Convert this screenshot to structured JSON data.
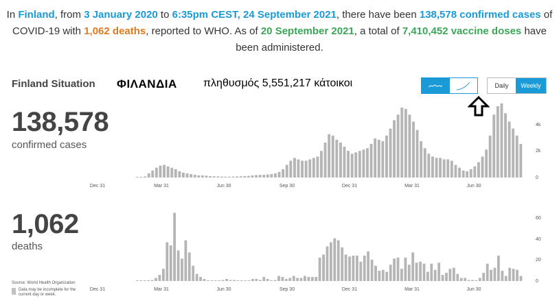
{
  "summary": {
    "p1": "In ",
    "country": "Finland",
    "p2": ", from ",
    "date_from": "3 January 2020",
    "p3": " to ",
    "date_to": "6:35pm CEST, 24 September 2021",
    "p4": ", there have been ",
    "confirmed_text": "138,578 confirmed cases",
    "p5": " of COVID-19 with ",
    "deaths_text": "1,062 deaths",
    "p6": ", reported to WHO. As of ",
    "vaccine_date": "20 September 2021",
    "p7": ", a total of ",
    "vaccine_text": "7,410,452 vaccine doses",
    "p8": " have been administered."
  },
  "header": {
    "title": "Finland Situation",
    "greek_title": "ΦΙΛΑΝΔΙΑ",
    "population": "πληθυσμός 5,551,217 κάτοικοι"
  },
  "controls": {
    "daily_label": "Daily",
    "weekly_label": "Weekly",
    "chart_icons": [
      "bar-chart-icon",
      "cumulative-line-icon"
    ]
  },
  "cases_panel": {
    "value": "138,578",
    "label": "confirmed cases"
  },
  "deaths_panel": {
    "value": "1,062",
    "label": "deaths"
  },
  "footer": {
    "source": "Source: World Health Organization",
    "note": "Data may be incomplete for the current day or week."
  },
  "colors": {
    "accent": "#1a9bd7",
    "orange": "#e07a1f",
    "green": "#3aa757",
    "bar": "#b5b5b5"
  },
  "chart_data": [
    {
      "type": "bar",
      "name": "confirmed cases",
      "xticks": [
        "Dec 31",
        "Mar 31",
        "Jun 30",
        "Sep 30",
        "Dec 31",
        "Mar 31",
        "Jun 30"
      ],
      "yticks": [
        "0",
        "2k",
        "4k"
      ],
      "ylim": [
        0,
        5000
      ],
      "values": [
        10,
        30,
        80,
        300,
        500,
        700,
        850,
        900,
        800,
        700,
        600,
        450,
        350,
        300,
        250,
        200,
        150,
        150,
        130,
        100,
        90,
        80,
        70,
        60,
        60,
        70,
        80,
        90,
        100,
        120,
        150,
        170,
        190,
        200,
        220,
        250,
        300,
        400,
        600,
        900,
        1200,
        1400,
        1300,
        1200,
        1200,
        1300,
        1400,
        1500,
        1900,
        2500,
        3100,
        3000,
        2700,
        2500,
        2200,
        1900,
        1700,
        1800,
        1900,
        2000,
        2100,
        2400,
        2800,
        2700,
        2600,
        3000,
        3500,
        4100,
        4500,
        5000,
        4900,
        4500,
        4000,
        3400,
        2600,
        2100,
        1700,
        1500,
        1400,
        1400,
        1300,
        1300,
        1200,
        900,
        700,
        500,
        450,
        600,
        800,
        1100,
        1500,
        2000,
        3000,
        4500,
        5100,
        5300,
        4600,
        4000,
        3500,
        3000,
        2400
      ]
    },
    {
      "type": "bar",
      "name": "deaths",
      "xticks": [
        "Dec 31",
        "Mar 31",
        "Jun 30",
        "Sep 30",
        "Dec 31",
        "Mar 31",
        "Jun 30"
      ],
      "yticks": [
        "0",
        "20",
        "40",
        "60"
      ],
      "ylim": [
        0,
        70
      ],
      "values": [
        0,
        0,
        0,
        0,
        1,
        3,
        6,
        12,
        38,
        35,
        67,
        30,
        22,
        40,
        28,
        15,
        7,
        4,
        2,
        0,
        0,
        0,
        0,
        1,
        2,
        1,
        1,
        0,
        0,
        0,
        0,
        2,
        2,
        1,
        4,
        2,
        0,
        1,
        5,
        4,
        2,
        3,
        5,
        3,
        3,
        5,
        4,
        4,
        4,
        23,
        26,
        34,
        38,
        42,
        40,
        33,
        26,
        24,
        25,
        25,
        19,
        25,
        29,
        21,
        15,
        10,
        11,
        9,
        16,
        22,
        23,
        12,
        23,
        16,
        28,
        18,
        19,
        17,
        9,
        17,
        11,
        18,
        6,
        8,
        12,
        13,
        7,
        3,
        3,
        1,
        1,
        0,
        3,
        8,
        17,
        11,
        13,
        25,
        10,
        5,
        13,
        12,
        11,
        5
      ]
    }
  ]
}
